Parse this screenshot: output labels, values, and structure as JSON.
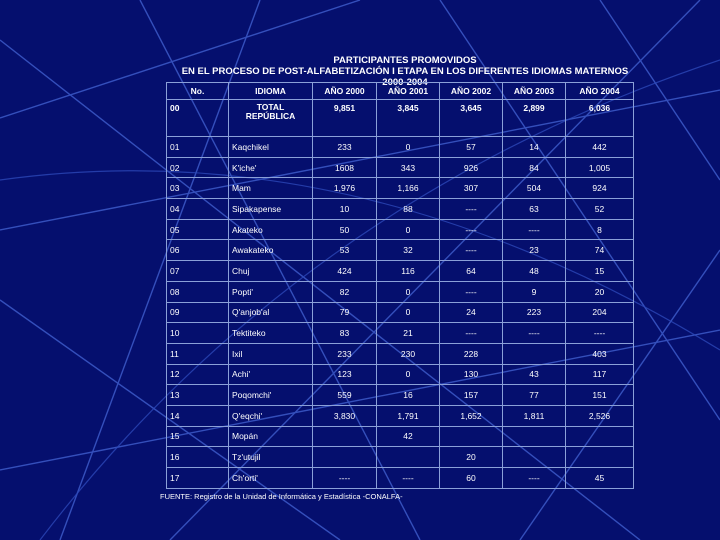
{
  "colors": {
    "background": "#050f6e",
    "lines": "#3a56c4",
    "grid": "#8ba0d8"
  },
  "title": {
    "line1": "PARTICIPANTES PROMOVIDOS",
    "line2": "EN EL PROCESO DE POST-ALFABETIZACIÓN I ETAPA EN LOS DIFERENTES IDIOMAS MATERNOS",
    "line3": "2000-2004"
  },
  "table": {
    "headers": [
      "No.",
      "IDIOMA",
      "AÑO 2000",
      "AÑO 2001",
      "AÑO 2002",
      "AÑO 2003",
      "AÑO 2004"
    ],
    "total": {
      "no": "00",
      "idioma": "TOTAL REPÚBLICA",
      "values": [
        "9,851",
        "3,845",
        "3,645",
        "2,899",
        "6,036"
      ]
    },
    "rows": [
      {
        "no": "01",
        "idioma": "Kaqchikel",
        "values": [
          "233",
          "0",
          "57",
          "14",
          "442"
        ]
      },
      {
        "no": "02",
        "idioma": "K'iche'",
        "values": [
          "1608",
          "343",
          "926",
          "84",
          "1,005"
        ]
      },
      {
        "no": "03",
        "idioma": "Mam",
        "values": [
          "1,976",
          "1,166",
          "307",
          "504",
          "924"
        ]
      },
      {
        "no": "04",
        "idioma": "Sipakapense",
        "values": [
          "10",
          "88",
          "----",
          "63",
          "52"
        ]
      },
      {
        "no": "05",
        "idioma": "Akateko",
        "values": [
          "50",
          "0",
          "----",
          "----",
          "8"
        ]
      },
      {
        "no": "06",
        "idioma": "Awakateko",
        "values": [
          "53",
          "32",
          "----",
          "23",
          "74"
        ]
      },
      {
        "no": "07",
        "idioma": "Chuj",
        "values": [
          "424",
          "116",
          "64",
          "48",
          "15"
        ]
      },
      {
        "no": "08",
        "idioma": "Popti'",
        "values": [
          "82",
          "0",
          "----",
          "9",
          "20"
        ]
      },
      {
        "no": "09",
        "idioma": "Q'anjob'al",
        "values": [
          "79",
          "0",
          "24",
          "223",
          "204"
        ]
      },
      {
        "no": "10",
        "idioma": "Tektiteko",
        "values": [
          "83",
          "21",
          "----",
          "----",
          "----"
        ]
      },
      {
        "no": "11",
        "idioma": "Ixil",
        "values": [
          "233",
          "230",
          "228",
          "",
          "403"
        ]
      },
      {
        "no": "12",
        "idioma": "Achi'",
        "values": [
          "123",
          "0",
          "130",
          "43",
          "117"
        ]
      },
      {
        "no": "13",
        "idioma": "Poqomchi'",
        "values": [
          "559",
          "16",
          "157",
          "77",
          "151"
        ]
      },
      {
        "no": "14",
        "idioma": "Q'eqchi'",
        "values": [
          "3,830",
          "1,791",
          "1,652",
          "1,811",
          "2,526"
        ]
      },
      {
        "no": "15",
        "idioma": "Mopán",
        "values": [
          "",
          "42",
          "",
          "",
          ""
        ]
      },
      {
        "no": "16",
        "idioma": "Tz'utujil",
        "values": [
          "",
          "",
          "20",
          "",
          ""
        ]
      },
      {
        "no": "17",
        "idioma": "Ch'orti'",
        "values": [
          "----",
          "----",
          "60",
          "----",
          "45"
        ]
      }
    ]
  },
  "source": "FUENTE: Registro de la Unidad de Informática y Estadística -CONALFA-"
}
